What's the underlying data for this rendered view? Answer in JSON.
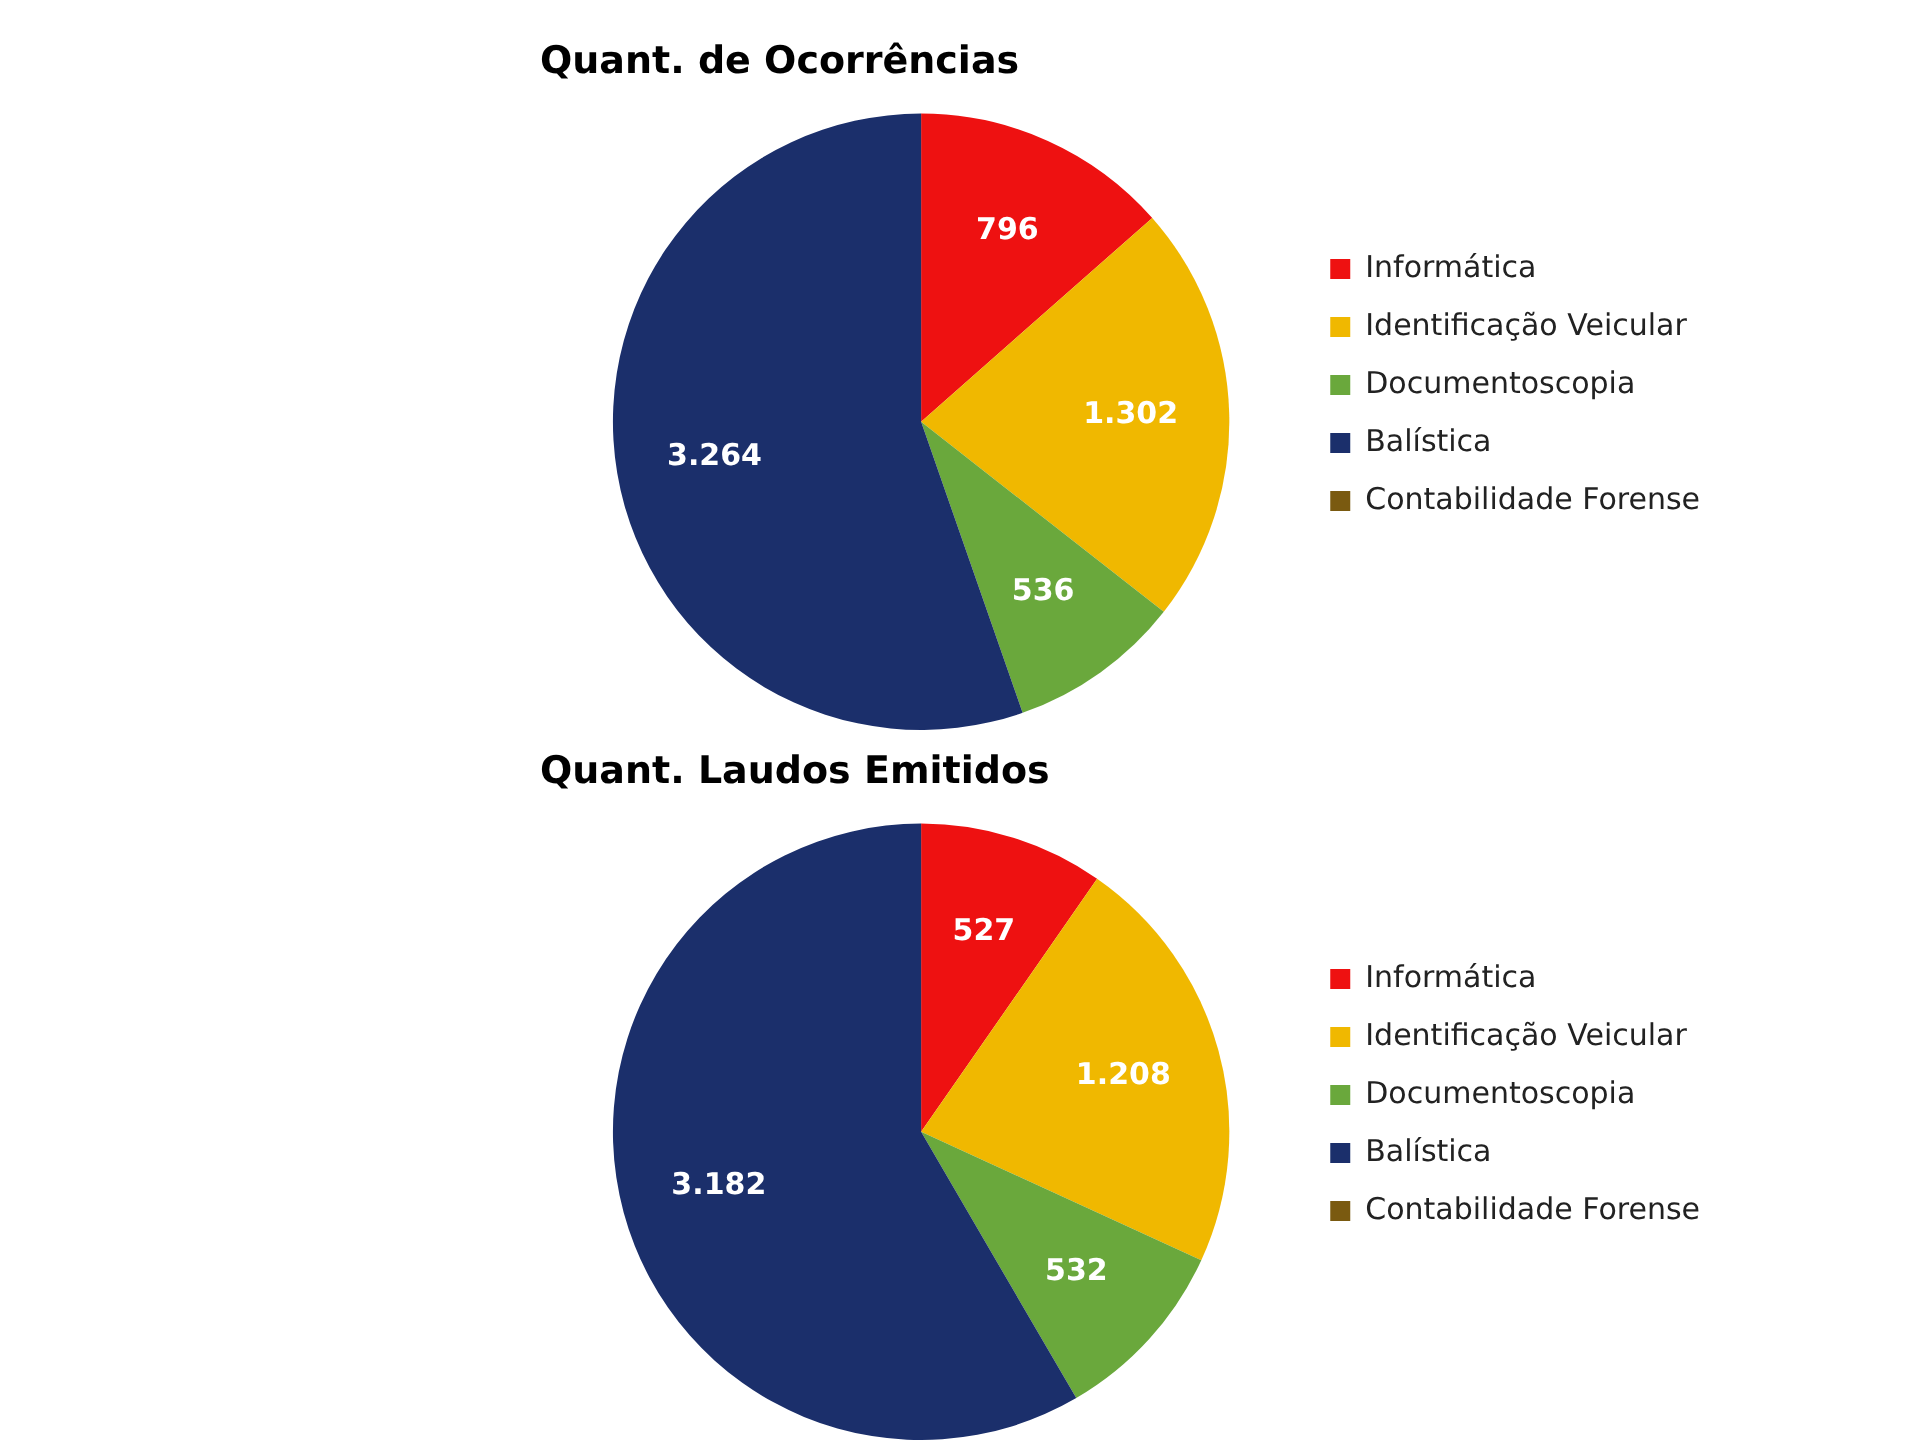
{
  "chart_data": [
    {
      "type": "pie",
      "title": "Quant. de Ocorrências",
      "categories": [
        "Informática",
        "Identificação Veicular",
        "Documentoscopia",
        "Balística",
        "Contabilidade Forense"
      ],
      "values": [
        796,
        1302,
        536,
        3264,
        0
      ],
      "value_labels": [
        "796",
        "1.302",
        "536",
        "3.264",
        null
      ],
      "colors": [
        "#ee1111",
        "#f0b800",
        "#6aa83c",
        "#1b2f6b",
        "#7a5a10"
      ],
      "legend": "right"
    },
    {
      "type": "pie",
      "title": "Quant. Laudos Emitidos",
      "categories": [
        "Informática",
        "Identificação Veicular",
        "Documentoscopia",
        "Balística",
        "Contabilidade Forense"
      ],
      "values": [
        527,
        1208,
        532,
        3182,
        0
      ],
      "value_labels": [
        "527",
        "1.208",
        "532",
        "3.182",
        null
      ],
      "colors": [
        "#ee1111",
        "#f0b800",
        "#6aa83c",
        "#1b2f6b",
        "#7a5a10"
      ],
      "legend": "right"
    }
  ]
}
